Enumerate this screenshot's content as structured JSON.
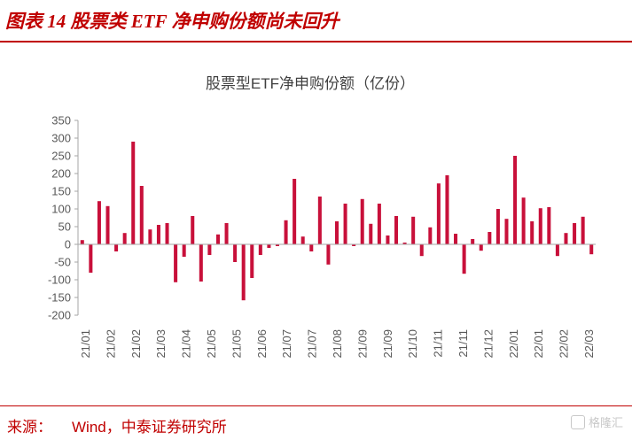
{
  "figure": {
    "title": "图表 14 股票类 ETF 净申购份额尚未回升",
    "source_label": "来源：",
    "source_text": "Wind，中泰证券研究所",
    "watermark": "格隆汇"
  },
  "colors": {
    "accent": "#c00000",
    "bar": "#c8103a",
    "axis": "#a6a6a6"
  },
  "chart_data": {
    "type": "bar",
    "title": "股票型ETF净申购份额（亿份）",
    "xlabel": "",
    "ylabel": "",
    "ylim": [
      -200,
      350
    ],
    "yticks": [
      350,
      300,
      250,
      200,
      150,
      100,
      50,
      0,
      -50,
      -100,
      -150,
      -200
    ],
    "grid": false,
    "legend": "none",
    "xtick_labels": [
      "21/01",
      "21/02",
      "21/02",
      "21/03",
      "21/04",
      "21/05",
      "21/05",
      "21/06",
      "21/07",
      "21/07",
      "21/08",
      "21/09",
      "21/09",
      "21/10",
      "21/11",
      "21/11",
      "21/12",
      "22/01",
      "22/01",
      "22/02",
      "22/03"
    ],
    "values": [
      12,
      -80,
      122,
      108,
      -20,
      32,
      290,
      165,
      42,
      55,
      60,
      -107,
      -35,
      80,
      -105,
      -30,
      28,
      60,
      -50,
      -158,
      -95,
      -30,
      -10,
      -5,
      68,
      185,
      22,
      -20,
      135,
      -57,
      65,
      115,
      -5,
      128,
      58,
      115,
      25,
      80,
      5,
      78,
      -33,
      48,
      172,
      195,
      30,
      -83,
      15,
      -18,
      35,
      100,
      72,
      250,
      132,
      65,
      102,
      105,
      -33,
      32,
      60,
      78,
      -28
    ]
  }
}
